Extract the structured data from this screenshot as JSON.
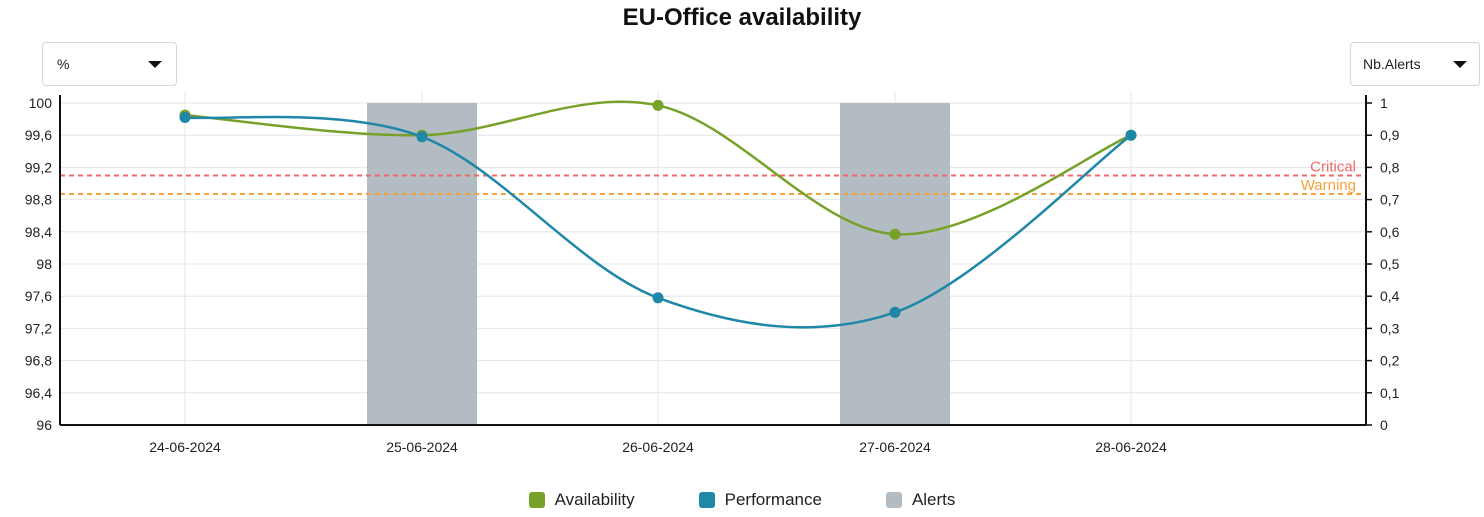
{
  "title": "EU-Office availability",
  "left_select": {
    "value": "%"
  },
  "right_select": {
    "value": "Nb.Alerts"
  },
  "colors": {
    "availability": "#77a128",
    "performance": "#1f87a8",
    "alerts": "#b2bcc2",
    "critical": "#f06a6a",
    "warning": "#f4a23a",
    "grid": "#e6e6e6",
    "axis": "#111111"
  },
  "chart_data": {
    "type": "line",
    "title": "EU-Office availability",
    "categories": [
      "24-06-2024",
      "25-06-2024",
      "26-06-2024",
      "27-06-2024",
      "28-06-2024"
    ],
    "y_left": {
      "ylim": [
        96,
        100
      ],
      "ticks": [
        "100",
        "99,6",
        "99,2",
        "98,8",
        "98,4",
        "98",
        "97,6",
        "97,2",
        "96,8",
        "96,4",
        "96"
      ],
      "tick_values": [
        100,
        99.6,
        99.2,
        98.8,
        98.4,
        98,
        97.6,
        97.2,
        96.8,
        96.4,
        96
      ]
    },
    "y_right": {
      "ylim": [
        0,
        1
      ],
      "ticks": [
        "1",
        "0,9",
        "0,8",
        "0,7",
        "0,6",
        "0,5",
        "0,4",
        "0,3",
        "0,2",
        "0,1",
        "0"
      ],
      "tick_values": [
        1,
        0.9,
        0.8,
        0.7,
        0.6,
        0.5,
        0.4,
        0.3,
        0.2,
        0.1,
        0
      ]
    },
    "series": [
      {
        "name": "Availability",
        "type": "line",
        "axis": "left",
        "values": [
          99.85,
          99.6,
          99.97,
          98.37,
          99.6
        ]
      },
      {
        "name": "Performance",
        "type": "line",
        "axis": "left",
        "values": [
          99.82,
          99.58,
          97.58,
          97.4,
          99.6
        ]
      },
      {
        "name": "Alerts",
        "type": "bar",
        "axis": "right",
        "values": [
          0,
          1,
          0,
          1,
          0
        ]
      }
    ],
    "thresholds": [
      {
        "label": "Critical",
        "value": 99.1,
        "color": "#f06a6a"
      },
      {
        "label": "Warning",
        "value": 98.87,
        "color": "#f4a23a"
      }
    ],
    "grid": true,
    "legend_position": "bottom"
  }
}
